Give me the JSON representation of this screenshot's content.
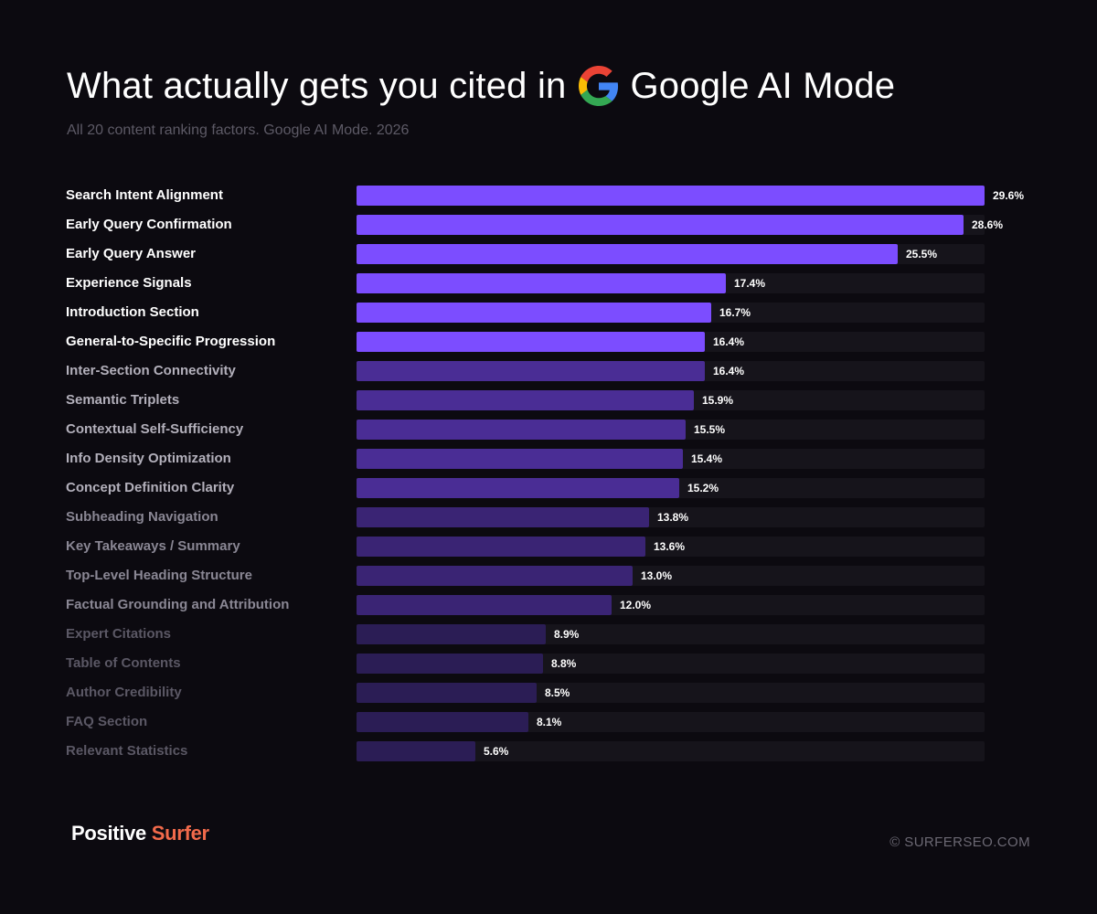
{
  "header": {
    "title_prefix": "What actually gets you cited in",
    "title_suffix": "Google AI Mode",
    "subtitle": "All 20 content ranking factors. Google AI Mode. 2026",
    "logo_icon": "google-g-icon"
  },
  "colors": {
    "background": "#0c0a10",
    "bar_tier_1": "#7c4dff",
    "bar_tier_2": "#4a2d95",
    "bar_tier_3": "#3a2474",
    "bar_tier_4": "#2b1d55",
    "track": "#16141b",
    "brand_accent": "#f26a4b"
  },
  "chart_data": {
    "type": "bar",
    "orientation": "horizontal",
    "xlim": [
      0,
      29.6
    ],
    "grid": false,
    "value_suffix": "%",
    "categories": [
      "Search Intent Alignment",
      "Early Query Confirmation",
      "Early Query Answer",
      "Experience Signals",
      "Introduction Section",
      "General-to-Specific Progression",
      "Inter-Section Connectivity",
      "Semantic Triplets",
      "Contextual Self-Sufficiency",
      "Info Density Optimization",
      "Concept Definition Clarity",
      "Subheading Navigation",
      "Key Takeaways / Summary",
      "Top-Level Heading Structure",
      "Factual Grounding and Attribution",
      "Expert Citations",
      "Table of Contents",
      "Author Credibility",
      "FAQ Section",
      "Relevant Statistics"
    ],
    "values": [
      29.6,
      28.6,
      25.5,
      17.4,
      16.7,
      16.4,
      16.4,
      15.9,
      15.5,
      15.4,
      15.2,
      13.8,
      13.6,
      13.0,
      12.0,
      8.9,
      8.8,
      8.5,
      8.1,
      5.6
    ],
    "value_labels": [
      "29.6%",
      "28.6%",
      "25.5%",
      "17.4%",
      "16.7%",
      "16.4%",
      "16.4%",
      "15.9%",
      "15.5%",
      "15.4%",
      "15.2%",
      "13.8%",
      "13.6%",
      "13.0%",
      "12.0%",
      "8.9%",
      "8.8%",
      "8.5%",
      "8.1%",
      "5.6%"
    ],
    "tiers": [
      1,
      1,
      1,
      1,
      1,
      1,
      2,
      2,
      2,
      2,
      2,
      3,
      3,
      3,
      3,
      4,
      4,
      4,
      4,
      4
    ]
  },
  "footer": {
    "brand_part1": "Positive",
    "brand_part2": "Surfer",
    "copyright": "© SURFERSEO.COM"
  }
}
